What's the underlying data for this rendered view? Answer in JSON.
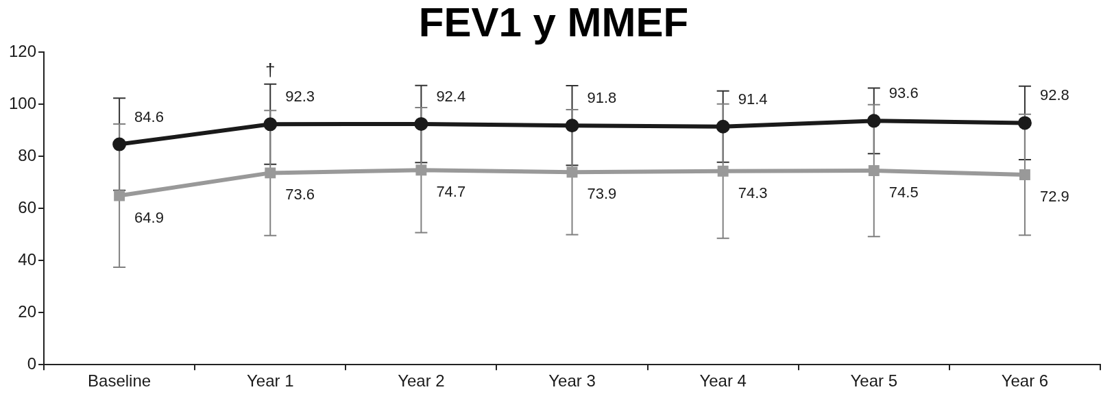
{
  "chart_data": {
    "type": "line",
    "title": "FEV1 y MMEF",
    "categories": [
      "Baseline",
      "Year 1",
      "Year 2",
      "Year 3",
      "Year 4",
      "Year 5",
      "Year 6"
    ],
    "series": [
      {
        "color": "#1a1a1a",
        "marker": "circle",
        "values": [
          84.6,
          92.3,
          92.4,
          91.8,
          91.4,
          93.6,
          92.8
        ],
        "errors": [
          17.7,
          15.4,
          14.8,
          15.3,
          13.7,
          12.6,
          14.1
        ]
      },
      {
        "color": "#999999",
        "marker": "square",
        "values": [
          64.9,
          73.6,
          74.7,
          73.9,
          74.3,
          74.5,
          72.9
        ],
        "errors": [
          27.5,
          24,
          24,
          24,
          25.8,
          25.3,
          23.2
        ]
      }
    ],
    "ylim": [
      0,
      120
    ],
    "yticks": [
      0,
      20,
      40,
      60,
      80,
      100,
      120
    ],
    "grid": false,
    "legend": false,
    "data_labels": true,
    "line_style": "solid",
    "annotations": [
      {
        "text": "†",
        "x": "Year 1",
        "y": 92.3
      }
    ]
  }
}
